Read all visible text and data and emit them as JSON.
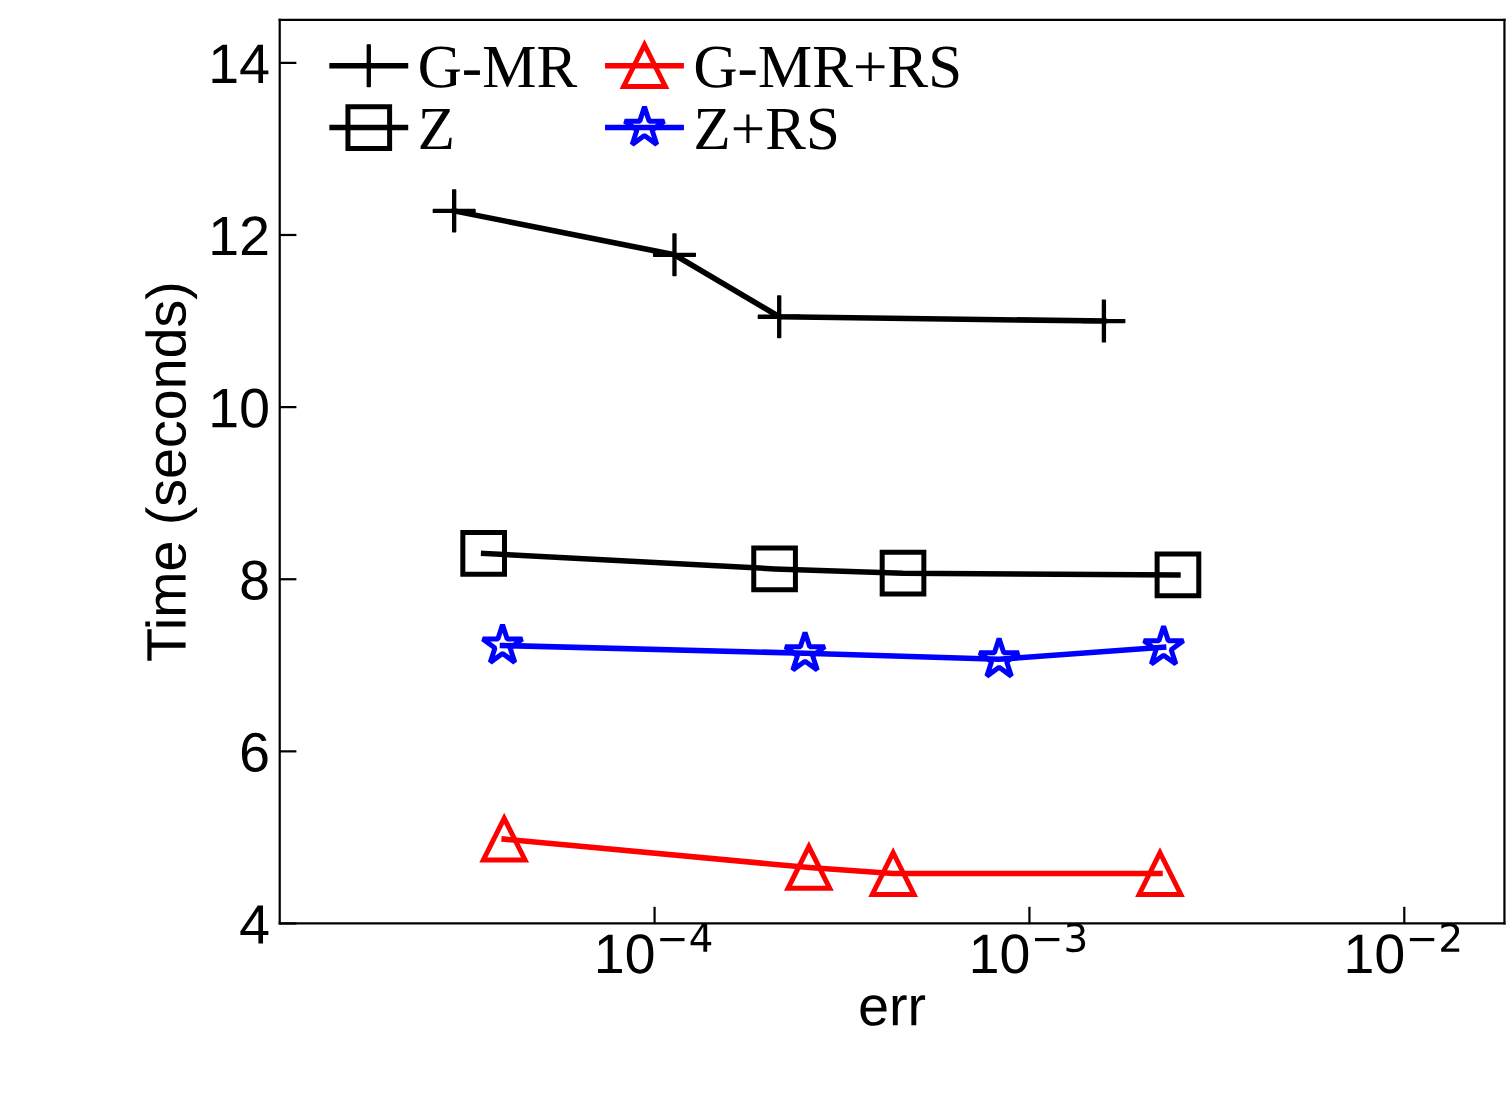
{
  "chart_data": {
    "type": "line",
    "xlabel": "err",
    "ylabel": "Time (seconds)",
    "log": "x",
    "xlim": [
      1e-05,
      0.0185
    ],
    "ylim": [
      4,
      14.5
    ],
    "xticks": [
      {
        "value": 0.0001,
        "label": "10$^{−4}$"
      },
      {
        "value": 0.001,
        "label": "10$^{−3}$"
      },
      {
        "value": 0.01,
        "label": "10$^{−2}$"
      }
    ],
    "yticks": [
      4,
      6,
      8,
      10,
      12,
      14
    ],
    "grid": false,
    "legend": "top",
    "series": [
      {
        "name": "G-MR",
        "color": "#000000",
        "marker": "cross",
        "x": [
          2.92e-05,
          0.000113,
          0.000215,
          0.00158
        ],
        "values": [
          12.28,
          11.77,
          11.05,
          11.0
        ]
      },
      {
        "name": "G-MR+RS",
        "color": "#ff0000",
        "marker": "triangle",
        "x": [
          3.97e-05,
          0.000258,
          0.000433,
          0.00223
        ],
        "values": [
          4.98,
          4.65,
          4.58,
          4.58
        ]
      },
      {
        "name": "Z",
        "color": "#000000",
        "marker": "square",
        "x": [
          3.5e-05,
          0.000209,
          0.00046,
          0.00249
        ],
        "values": [
          8.3,
          8.12,
          8.07,
          8.05
        ]
      },
      {
        "name": "Z+RS",
        "color": "#0000ff",
        "marker": "star",
        "x": [
          3.93e-05,
          0.000252,
          0.00083,
          0.00228
        ],
        "values": [
          7.23,
          7.14,
          7.07,
          7.21
        ]
      }
    ]
  }
}
